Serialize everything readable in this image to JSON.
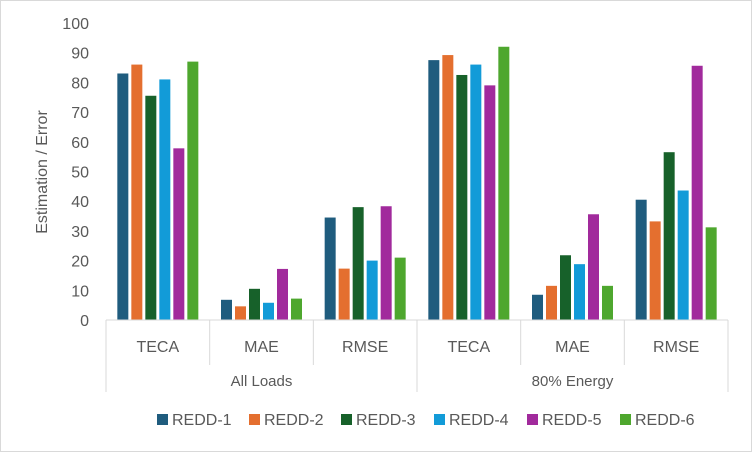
{
  "chart_data": {
    "type": "bar",
    "title": "",
    "ylabel": "Estimation / Error",
    "xlabel": "",
    "ylim": [
      0,
      100
    ],
    "yticks": [
      0,
      10,
      20,
      30,
      40,
      50,
      60,
      70,
      80,
      90,
      100
    ],
    "grid": false,
    "legend_position": "bottom",
    "groups": [
      {
        "label": "All Loads",
        "categories": [
          "TECA",
          "MAE",
          "RMSE"
        ]
      },
      {
        "label": "80% Energy",
        "categories": [
          "TECA",
          "MAE",
          "RMSE"
        ]
      }
    ],
    "categories": [
      "TECA",
      "MAE",
      "RMSE",
      "TECA",
      "MAE",
      "RMSE"
    ],
    "series": [
      {
        "name": "REDD-1",
        "color": "#1f5c7e",
        "values": [
          83,
          6.8,
          34.5,
          87.5,
          8.5,
          40.5
        ]
      },
      {
        "name": "REDD-2",
        "color": "#e46f2f",
        "values": [
          86,
          4.6,
          17.3,
          89.2,
          11.5,
          33.2
        ]
      },
      {
        "name": "REDD-3",
        "color": "#17612a",
        "values": [
          75.5,
          10.5,
          38,
          82.5,
          21.8,
          56.5
        ]
      },
      {
        "name": "REDD-4",
        "color": "#129bd8",
        "values": [
          81,
          5.8,
          20,
          86,
          18.8,
          43.6
        ]
      },
      {
        "name": "REDD-5",
        "color": "#a12a9c",
        "values": [
          57.8,
          17.2,
          38.3,
          79,
          35.6,
          85.6
        ]
      },
      {
        "name": "REDD-6",
        "color": "#4ea72e",
        "values": [
          87,
          7.2,
          21,
          92,
          11.5,
          31.2
        ]
      }
    ]
  }
}
